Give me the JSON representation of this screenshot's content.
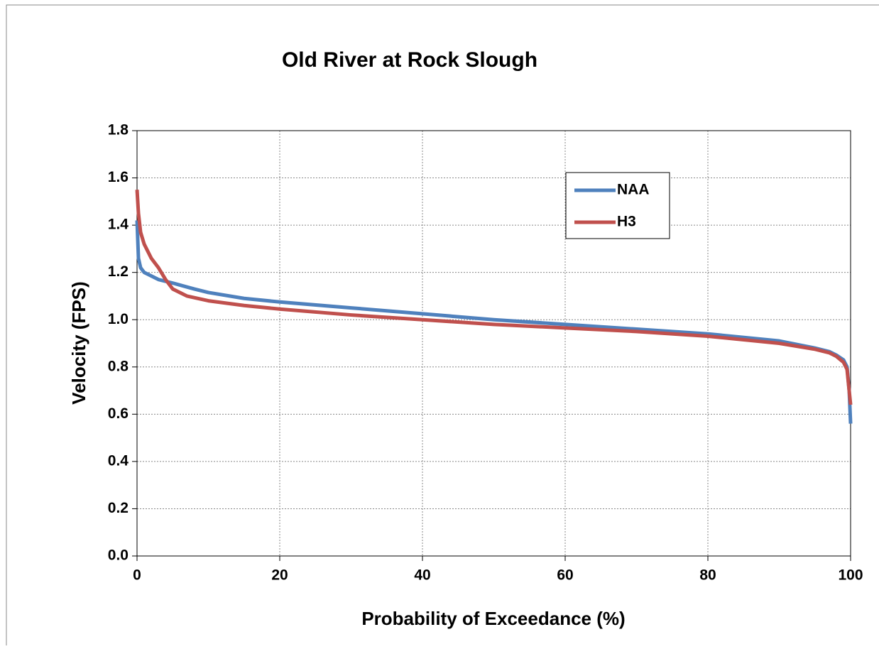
{
  "chart_data": {
    "type": "line",
    "title": "Old River at Rock Slough",
    "xlabel": "Probability of Exceedance (%)",
    "ylabel": "Velocity (FPS)",
    "xlim": [
      0,
      100
    ],
    "ylim": [
      0,
      1.8
    ],
    "xticks": [
      0,
      20,
      40,
      60,
      80,
      100
    ],
    "yticks": [
      {
        "value": 0,
        "label": "0.0"
      },
      0.2,
      0.4,
      0.6,
      0.8,
      {
        "value": 1,
        "label": "1.0"
      },
      1.2,
      1.4,
      1.6,
      1.8
    ],
    "grid": true,
    "legend": "upper right",
    "series": [
      {
        "name": "NAA",
        "color": "#4f81bd",
        "x": [
          0,
          0.2,
          0.5,
          1,
          2,
          3,
          5,
          8,
          10,
          15,
          20,
          30,
          40,
          50,
          60,
          70,
          80,
          90,
          95,
          97,
          98,
          99,
          99.5,
          99.8,
          100
        ],
        "values": [
          1.42,
          1.26,
          1.22,
          1.2,
          1.185,
          1.17,
          1.155,
          1.13,
          1.115,
          1.09,
          1.075,
          1.05,
          1.025,
          1.0,
          0.98,
          0.96,
          0.94,
          0.91,
          0.88,
          0.865,
          0.85,
          0.83,
          0.8,
          0.7,
          0.56
        ]
      },
      {
        "name": "H3",
        "color": "#c0504d",
        "x": [
          0,
          0.2,
          0.5,
          1,
          2,
          3,
          4,
          5,
          7,
          10,
          15,
          20,
          30,
          40,
          50,
          60,
          70,
          80,
          90,
          95,
          97,
          98,
          99,
          99.5,
          100
        ],
        "values": [
          1.55,
          1.45,
          1.37,
          1.32,
          1.26,
          1.22,
          1.17,
          1.13,
          1.1,
          1.08,
          1.06,
          1.045,
          1.02,
          1.0,
          0.98,
          0.965,
          0.95,
          0.93,
          0.9,
          0.875,
          0.86,
          0.845,
          0.82,
          0.79,
          0.64
        ]
      }
    ]
  }
}
